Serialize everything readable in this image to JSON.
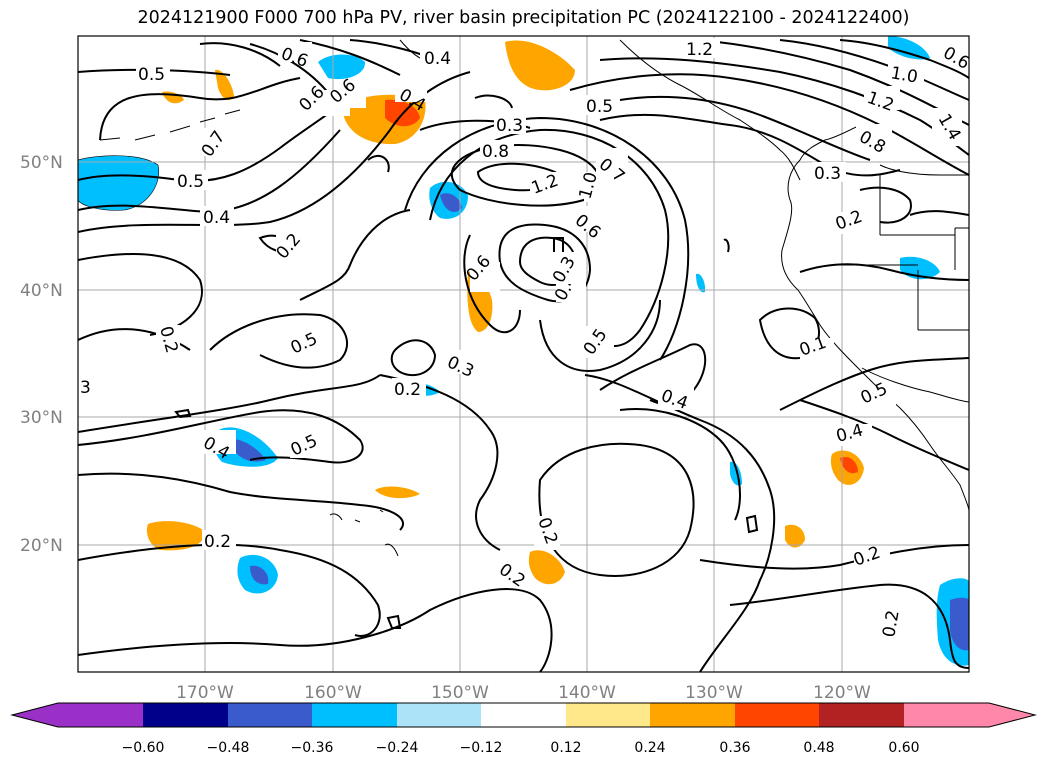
{
  "title": "2024121900 F000 700 hPa PV, river basin precipitation PC (2024122100 - 2024122400)",
  "lat_ticks": [
    "50°N",
    "40°N",
    "30°N",
    "20°N"
  ],
  "lon_ticks": [
    "170°W",
    "160°W",
    "150°W",
    "140°W",
    "130°W",
    "120°W"
  ],
  "contour_labels": [
    "0.5",
    "0.6",
    "0.4",
    "0.7",
    "0.6",
    "0.4",
    "0.5",
    "0.4",
    "0.2",
    "0.2",
    "3",
    "0.5",
    "0.3",
    "0.2",
    "0.4",
    "0.5",
    "0.2",
    "0.8",
    "1.2",
    "0.7",
    "1.0",
    "0.6",
    "0.3",
    "0.4",
    "0.6",
    "0.5",
    "0.4",
    "0.2",
    "0.2",
    "1.2",
    "0.5",
    "0.6",
    "1.0",
    "1.2",
    "0.8",
    "1.4",
    "0.3",
    "0.2",
    "0.1",
    "0.5",
    "0.4",
    "0.2",
    "0.2",
    "0.3",
    "0.6"
  ],
  "colorbar": {
    "ticks": [
      "−0.60",
      "−0.48",
      "−0.36",
      "−0.24",
      "−0.12",
      "0.12",
      "0.24",
      "0.36",
      "0.48",
      "0.60"
    ],
    "colors": [
      "#9b30c8",
      "#00008b",
      "#3a5bcc",
      "#00bfff",
      "#ade3f8",
      "#ffffff",
      "#ffe88a",
      "#ffa500",
      "#ff4500",
      "#b22222",
      "#ff88aa"
    ]
  }
}
